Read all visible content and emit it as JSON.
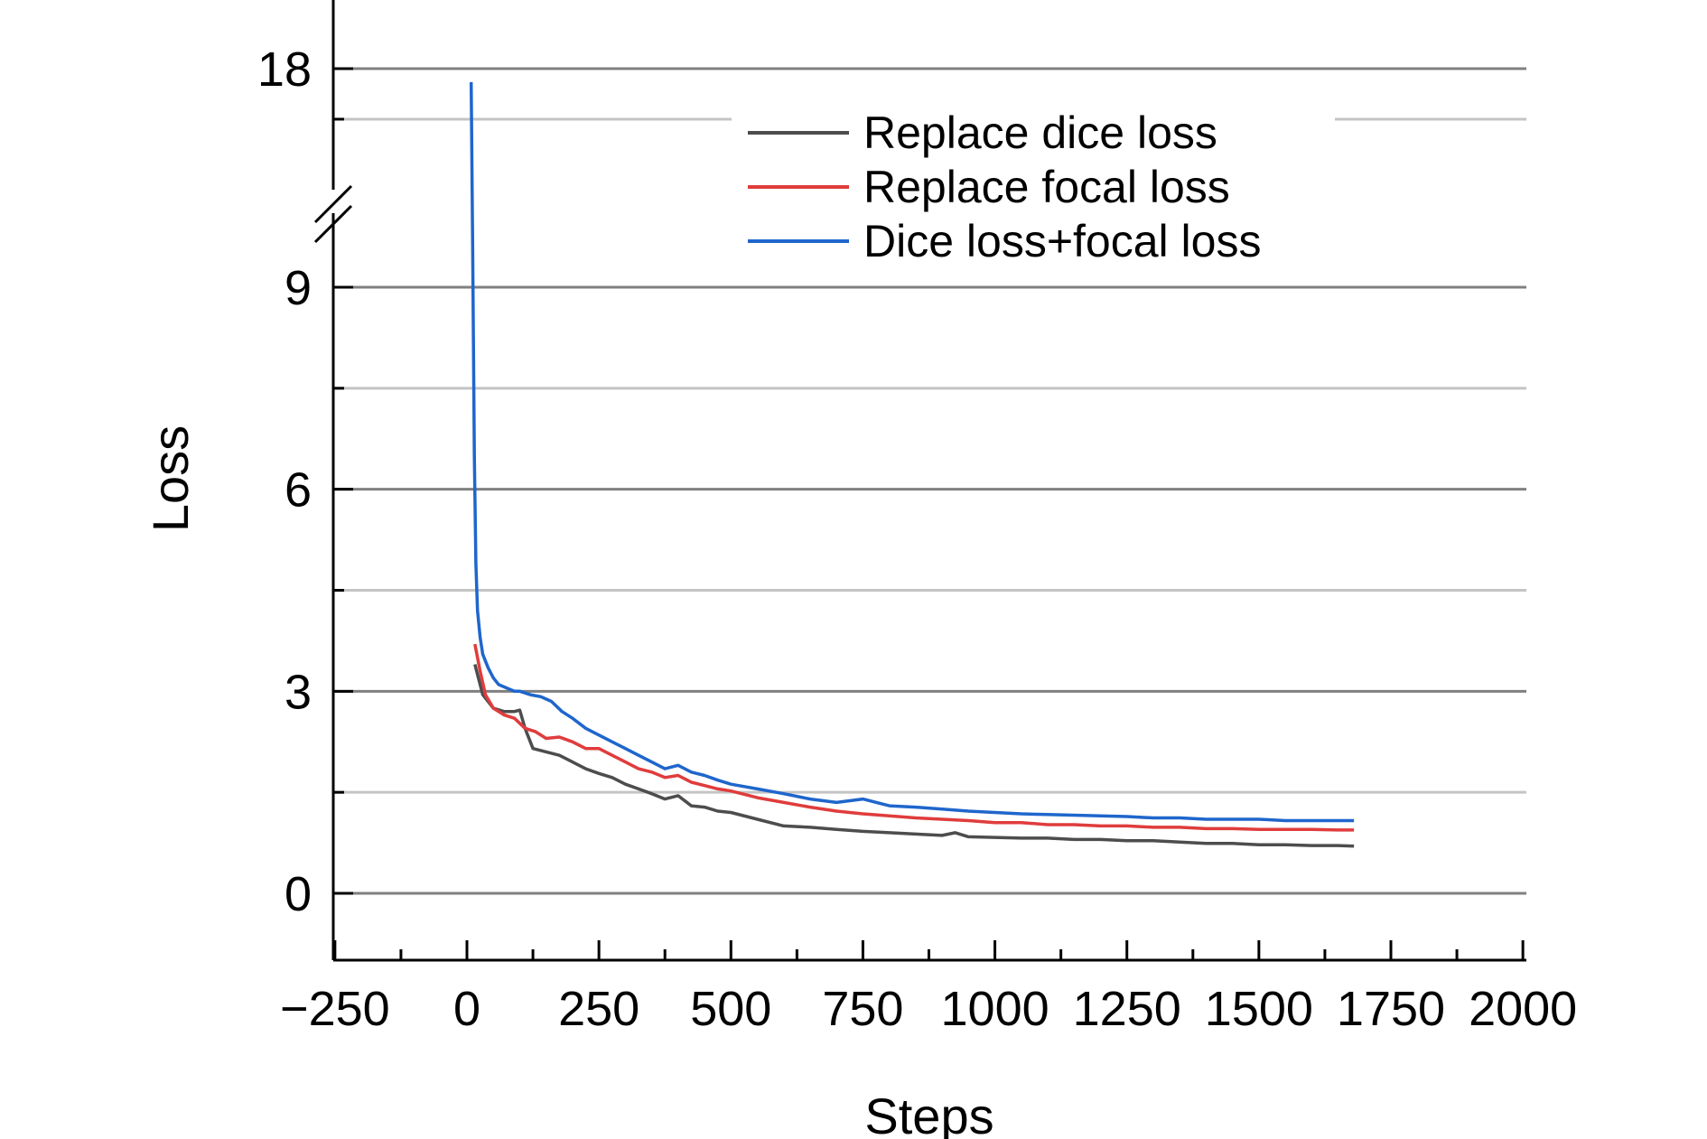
{
  "chart_data": {
    "type": "line",
    "title": "",
    "xlabel": "Steps",
    "ylabel": "Loss",
    "xlim": [
      -250,
      2000
    ],
    "x_ticks": [
      -250,
      0,
      250,
      500,
      750,
      1000,
      1250,
      1500,
      1750,
      2000
    ],
    "x_tick_labels": [
      "−250",
      "0",
      "250",
      "500",
      "750",
      "1000",
      "1250",
      "1500",
      "1750",
      "2000"
    ],
    "y_axis_break": {
      "lower_segment": [
        -1.5,
        10.4
      ],
      "upper_segment": [
        16.4,
        22
      ]
    },
    "y_ticks": [
      0,
      3,
      6,
      9,
      18
    ],
    "y_tick_labels": [
      "0",
      "3",
      "6",
      "9",
      "18"
    ],
    "grid": true,
    "legend_position": "top-right",
    "series": [
      {
        "name": "Replace dice loss",
        "color": "#4d4d4d",
        "x": [
          15,
          30,
          50,
          70,
          90,
          100,
          110,
          125,
          150,
          175,
          200,
          225,
          250,
          275,
          300,
          325,
          350,
          375,
          400,
          425,
          450,
          475,
          500,
          550,
          600,
          650,
          700,
          750,
          800,
          850,
          900,
          925,
          950,
          1000,
          1050,
          1100,
          1150,
          1200,
          1250,
          1300,
          1350,
          1400,
          1450,
          1500,
          1550,
          1600,
          1650,
          1680
        ],
        "y": [
          3.4,
          2.95,
          2.75,
          2.7,
          2.7,
          2.72,
          2.45,
          2.15,
          2.1,
          2.05,
          1.95,
          1.85,
          1.78,
          1.72,
          1.62,
          1.55,
          1.48,
          1.4,
          1.45,
          1.3,
          1.28,
          1.22,
          1.2,
          1.1,
          1.0,
          0.98,
          0.95,
          0.92,
          0.9,
          0.88,
          0.86,
          0.9,
          0.84,
          0.83,
          0.82,
          0.82,
          0.8,
          0.8,
          0.78,
          0.78,
          0.76,
          0.74,
          0.74,
          0.72,
          0.72,
          0.71,
          0.71,
          0.7
        ]
      },
      {
        "name": "Replace focal loss",
        "color": "#e03c3c",
        "x": [
          15,
          25,
          35,
          50,
          70,
          90,
          110,
          130,
          150,
          175,
          200,
          225,
          250,
          275,
          300,
          325,
          350,
          375,
          400,
          425,
          450,
          475,
          500,
          550,
          600,
          650,
          700,
          750,
          800,
          850,
          900,
          950,
          1000,
          1050,
          1100,
          1150,
          1200,
          1250,
          1300,
          1350,
          1400,
          1450,
          1500,
          1550,
          1600,
          1650,
          1680
        ],
        "y": [
          3.7,
          3.3,
          2.95,
          2.75,
          2.65,
          2.6,
          2.45,
          2.4,
          2.3,
          2.32,
          2.25,
          2.15,
          2.15,
          2.05,
          1.95,
          1.85,
          1.8,
          1.72,
          1.75,
          1.65,
          1.6,
          1.55,
          1.52,
          1.42,
          1.35,
          1.28,
          1.22,
          1.18,
          1.15,
          1.12,
          1.1,
          1.08,
          1.05,
          1.05,
          1.02,
          1.02,
          1.0,
          1.0,
          0.98,
          0.98,
          0.96,
          0.96,
          0.95,
          0.95,
          0.95,
          0.94,
          0.94
        ]
      },
      {
        "name": "Dice loss+focal loss",
        "color": "#1f66cc",
        "x": [
          8,
          11,
          14,
          17,
          20,
          25,
          30,
          40,
          50,
          60,
          75,
          90,
          100,
          120,
          140,
          160,
          180,
          200,
          225,
          250,
          275,
          300,
          325,
          350,
          375,
          400,
          425,
          450,
          475,
          500,
          550,
          600,
          650,
          700,
          750,
          800,
          850,
          900,
          950,
          1000,
          1050,
          1100,
          1150,
          1200,
          1250,
          1300,
          1350,
          1400,
          1450,
          1500,
          1550,
          1600,
          1650,
          1680
        ],
        "y": [
          17.6,
          9.5,
          6.5,
          4.9,
          4.2,
          3.8,
          3.55,
          3.35,
          3.2,
          3.1,
          3.05,
          3.0,
          3.0,
          2.95,
          2.92,
          2.85,
          2.7,
          2.6,
          2.45,
          2.35,
          2.25,
          2.15,
          2.05,
          1.95,
          1.85,
          1.9,
          1.8,
          1.75,
          1.68,
          1.62,
          1.55,
          1.48,
          1.4,
          1.35,
          1.4,
          1.3,
          1.28,
          1.25,
          1.22,
          1.2,
          1.18,
          1.17,
          1.16,
          1.15,
          1.14,
          1.12,
          1.12,
          1.1,
          1.1,
          1.1,
          1.08,
          1.08,
          1.08,
          1.08
        ]
      }
    ]
  }
}
